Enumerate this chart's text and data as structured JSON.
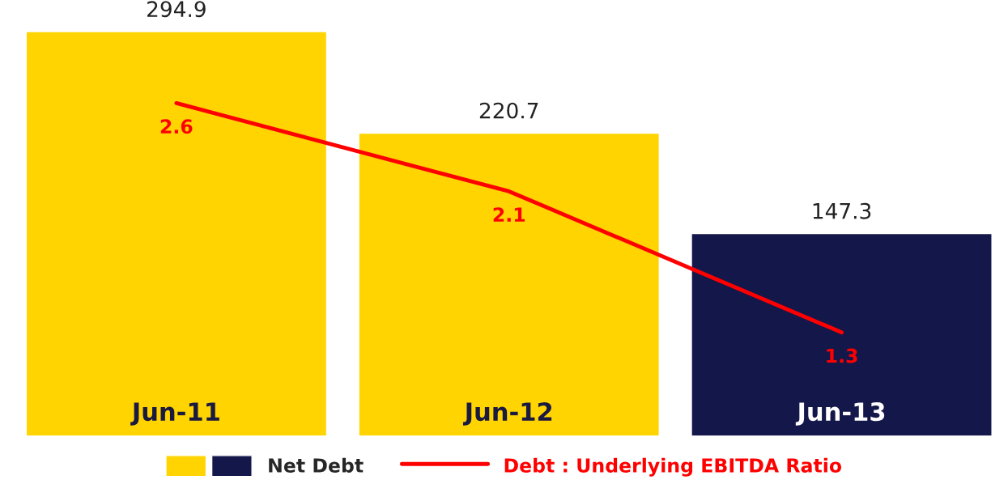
{
  "chart_data": {
    "type": "bar",
    "categories": [
      "Jun-11",
      "Jun-12",
      "Jun-13"
    ],
    "series": [
      {
        "name": "Net Debt",
        "colors": [
          "#ffd400",
          "#ffd400",
          "#14174a"
        ],
        "values": [
          294.9,
          220.7,
          147.3
        ]
      },
      {
        "name": "Debt : Underlying EBITDA Ratio",
        "type": "line",
        "color": "#ff0000",
        "axis": "y2",
        "values": [
          2.6,
          2.1,
          1.3
        ]
      }
    ],
    "tick_labels": false,
    "data_labels": true,
    "legend": "bottom",
    "marker": "none",
    "line_style": "solid"
  }
}
